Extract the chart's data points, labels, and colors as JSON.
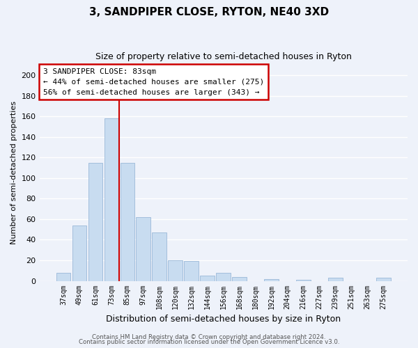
{
  "title": "3, SANDPIPER CLOSE, RYTON, NE40 3XD",
  "subtitle": "Size of property relative to semi-detached houses in Ryton",
  "xlabel": "Distribution of semi-detached houses by size in Ryton",
  "ylabel": "Number of semi-detached properties",
  "bar_color": "#c8dcf0",
  "bar_edge_color": "#9ab8d8",
  "background_color": "#eef2fa",
  "grid_color": "#ffffff",
  "vline_color": "#cc0000",
  "annotation_title": "3 SANDPIPER CLOSE: 83sqm",
  "annotation_line1": "← 44% of semi-detached houses are smaller (275)",
  "annotation_line2": "56% of semi-detached houses are larger (343) →",
  "annotation_box_color": "#ffffff",
  "annotation_box_edge": "#cc0000",
  "categories": [
    "37sqm",
    "49sqm",
    "61sqm",
    "73sqm",
    "85sqm",
    "97sqm",
    "108sqm",
    "120sqm",
    "132sqm",
    "144sqm",
    "156sqm",
    "168sqm",
    "180sqm",
    "192sqm",
    "204sqm",
    "216sqm",
    "227sqm",
    "239sqm",
    "251sqm",
    "263sqm",
    "275sqm"
  ],
  "values": [
    8,
    54,
    115,
    158,
    115,
    62,
    47,
    20,
    19,
    5,
    8,
    4,
    0,
    2,
    0,
    1,
    0,
    3,
    0,
    0,
    3
  ],
  "ylim": [
    0,
    210
  ],
  "yticks": [
    0,
    20,
    40,
    60,
    80,
    100,
    120,
    140,
    160,
    180,
    200
  ],
  "footer1": "Contains HM Land Registry data © Crown copyright and database right 2024.",
  "footer2": "Contains public sector information licensed under the Open Government Licence v3.0."
}
